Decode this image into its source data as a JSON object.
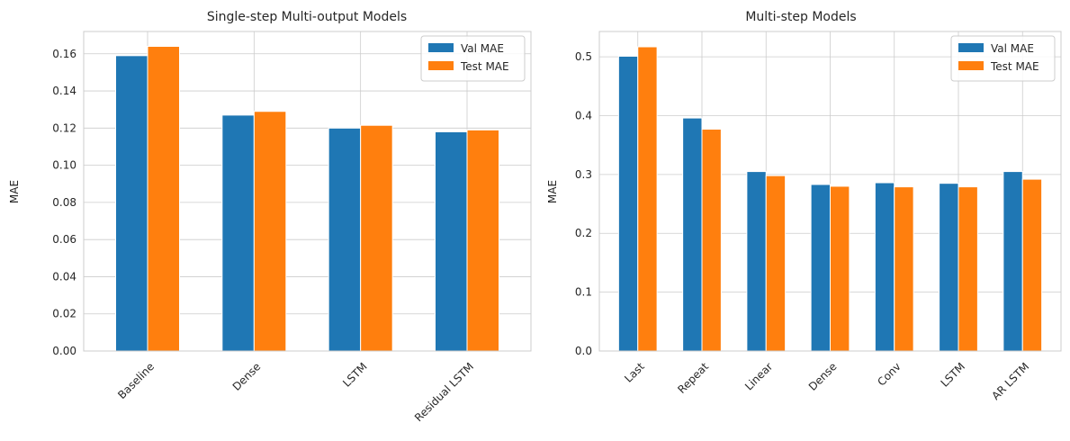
{
  "chart_data": [
    {
      "type": "bar",
      "title": "Single-step Multi-output Models",
      "xlabel": "",
      "ylabel": "MAE",
      "ylim": [
        0,
        0.172
      ],
      "yticks": [
        "0.00",
        "0.02",
        "0.04",
        "0.06",
        "0.08",
        "0.10",
        "0.12",
        "0.14",
        "0.16"
      ],
      "categories": [
        "Baseline",
        "Dense",
        "LSTM",
        "Residual LSTM"
      ],
      "series": [
        {
          "name": "Val MAE",
          "color": "#1f77b4",
          "values": [
            0.159,
            0.127,
            0.12,
            0.118
          ]
        },
        {
          "name": "Test MAE",
          "color": "#ff7f0e",
          "values": [
            0.164,
            0.129,
            0.1215,
            0.119
          ]
        }
      ],
      "grid": true,
      "legend": "top-right"
    },
    {
      "type": "bar",
      "title": "Multi-step Models",
      "xlabel": "",
      "ylabel": "MAE",
      "ylim": [
        0,
        0.543
      ],
      "yticks": [
        "0.0",
        "0.1",
        "0.2",
        "0.3",
        "0.4",
        "0.5"
      ],
      "categories": [
        "Last",
        "Repeat",
        "Linear",
        "Dense",
        "Conv",
        "LSTM",
        "AR LSTM"
      ],
      "series": [
        {
          "name": "Val MAE",
          "color": "#1f77b4",
          "values": [
            0.501,
            0.396,
            0.305,
            0.283,
            0.286,
            0.285,
            0.305
          ]
        },
        {
          "name": "Test MAE",
          "color": "#ff7f0e",
          "values": [
            0.517,
            0.377,
            0.298,
            0.28,
            0.279,
            0.279,
            0.292
          ]
        }
      ],
      "grid": true,
      "legend": "top-right"
    }
  ]
}
